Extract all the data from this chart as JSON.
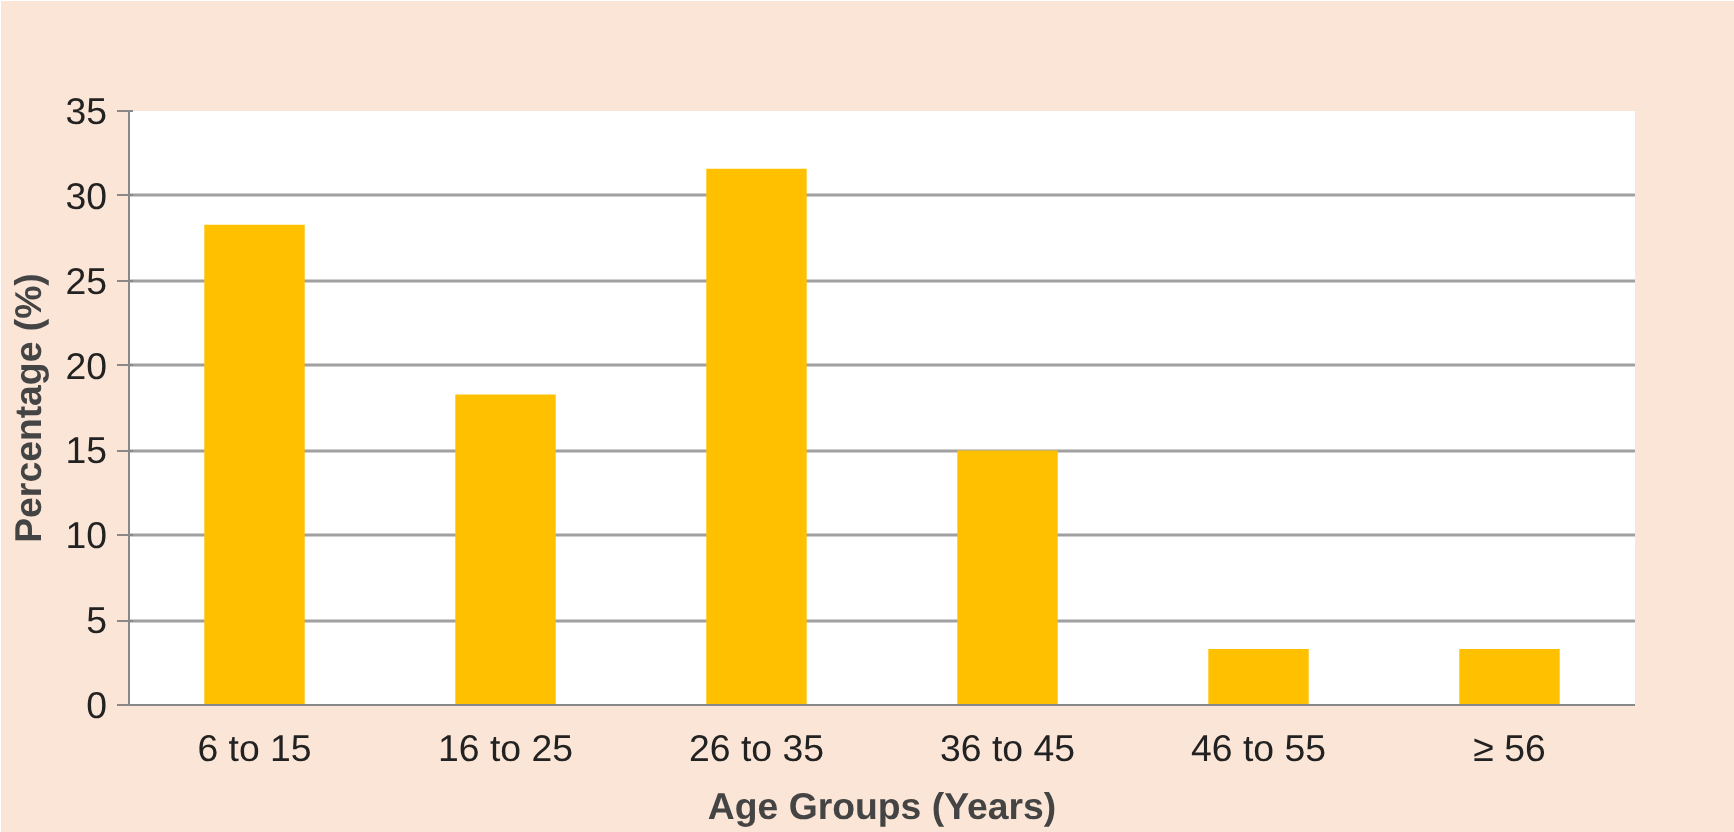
{
  "chart_data": {
    "type": "bar",
    "categories": [
      "6 to 15",
      "16 to 25",
      "26 to 35",
      "36 to 45",
      "46 to 55",
      "≥ 56"
    ],
    "values": [
      28.3,
      18.3,
      31.6,
      15.0,
      3.3,
      3.3
    ],
    "color": "#ffc000",
    "xlabel": "Age Groups (Years)",
    "ylabel": "Percentage (%)",
    "ylim": [
      0,
      35
    ],
    "yticks": [
      0,
      5,
      10,
      15,
      20,
      25,
      30,
      35
    ],
    "grid": "y"
  }
}
